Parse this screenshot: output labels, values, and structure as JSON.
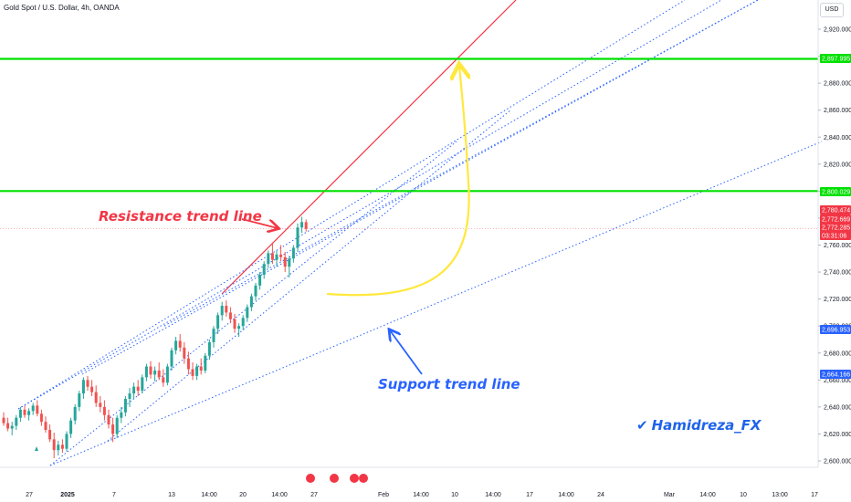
{
  "header": {
    "title": "Gold Spot / U.S. Dollar, 4h, OANDA",
    "currency_button": "USD"
  },
  "annotations": {
    "resistance": "Resistance trend line",
    "support": "Support trend line",
    "author": "Hamidreza_FX"
  },
  "colors": {
    "up": "#26a69a",
    "down": "#ef5350",
    "level": "#00e000",
    "resistance": "#f23645",
    "support": "#2962ff",
    "arrow_yellow": "#ffe83d"
  },
  "chart_data": {
    "type": "candlestick",
    "title": "Gold Spot / U.S. Dollar, 4h, OANDA",
    "y_axis": {
      "ylim": [
        2590,
        2932
      ],
      "ticks": [
        2600,
        2620,
        2640,
        2660,
        2680,
        2700,
        2720,
        2740,
        2760,
        2780,
        2800,
        2820,
        2840,
        2860,
        2880,
        2900,
        2920
      ],
      "tick_labels": [
        "2,600.000",
        "2,620.000",
        "2,640.000",
        "2,660.000",
        "2,680.000",
        "2,700.000",
        "2,720.000",
        "2,740.000",
        "2,760.000",
        "2,780.000",
        "2,800.000",
        "2,820.000",
        "2,840.000",
        "2,860.000",
        "2,880.000",
        "2,900.000",
        "2,920.000"
      ]
    },
    "x_axis": {
      "tick_labels": [
        "27",
        "2025",
        "7",
        "13",
        "14:00",
        "20",
        "14:00",
        "27",
        "Feb",
        "14:00",
        "10",
        "14:00",
        "17",
        "14:00",
        "24",
        "Mar",
        "14:00",
        "10",
        "13:00",
        "17"
      ]
    },
    "price_tags": [
      {
        "label": "2,897.995",
        "value": 2897.995,
        "color": "#00e000"
      },
      {
        "label": "2,800.029",
        "value": 2800.029,
        "color": "#00e000"
      },
      {
        "label": "2,780.474",
        "value": 2780.474,
        "color": "#f23645"
      },
      {
        "label": "2,772.669",
        "value": 2772.669,
        "color": "#f23645"
      },
      {
        "label": "2,772.285",
        "value": 2772.285,
        "color": "#f23645"
      },
      {
        "label": "03:31:06",
        "value": 2766.3,
        "color": "#f23645"
      },
      {
        "label": "2,696.953",
        "value": 2696.953,
        "color": "#2962ff"
      },
      {
        "label": "2,664.166",
        "value": 2664.166,
        "color": "#2962ff"
      }
    ],
    "horizontal_levels": [
      2897.995,
      2800.029
    ],
    "candles": [
      [
        2632,
        2636,
        2626,
        2628
      ],
      [
        2628,
        2632,
        2622,
        2624
      ],
      [
        2624,
        2629,
        2619,
        2626
      ],
      [
        2626,
        2634,
        2623,
        2632
      ],
      [
        2632,
        2640,
        2629,
        2638
      ],
      [
        2638,
        2641,
        2632,
        2634
      ],
      [
        2634,
        2639,
        2630,
        2637
      ],
      [
        2637,
        2643,
        2634,
        2641
      ],
      [
        2641,
        2645,
        2633,
        2635
      ],
      [
        2635,
        2638,
        2626,
        2629
      ],
      [
        2629,
        2633,
        2621,
        2623
      ],
      [
        2623,
        2627,
        2614,
        2616
      ],
      [
        2616,
        2621,
        2602,
        2608
      ],
      [
        2608,
        2615,
        2604,
        2612
      ],
      [
        2612,
        2616,
        2606,
        2609
      ],
      [
        2609,
        2622,
        2607,
        2620
      ],
      [
        2620,
        2632,
        2617,
        2630
      ],
      [
        2630,
        2642,
        2627,
        2640
      ],
      [
        2640,
        2652,
        2637,
        2650
      ],
      [
        2650,
        2662,
        2646,
        2660
      ],
      [
        2660,
        2663,
        2652,
        2655
      ],
      [
        2655,
        2660,
        2648,
        2651
      ],
      [
        2651,
        2656,
        2640,
        2643
      ],
      [
        2643,
        2648,
        2636,
        2640
      ],
      [
        2640,
        2645,
        2630,
        2634
      ],
      [
        2634,
        2638,
        2624,
        2627
      ],
      [
        2627,
        2632,
        2614,
        2620
      ],
      [
        2620,
        2634,
        2617,
        2632
      ],
      [
        2632,
        2640,
        2628,
        2636
      ],
      [
        2636,
        2648,
        2633,
        2646
      ],
      [
        2646,
        2654,
        2640,
        2650
      ],
      [
        2650,
        2658,
        2646,
        2655
      ],
      [
        2655,
        2660,
        2648,
        2652
      ],
      [
        2652,
        2664,
        2650,
        2662
      ],
      [
        2662,
        2672,
        2659,
        2670
      ],
      [
        2670,
        2674,
        2661,
        2664
      ],
      [
        2664,
        2670,
        2659,
        2667
      ],
      [
        2667,
        2673,
        2660,
        2662
      ],
      [
        2662,
        2668,
        2655,
        2658
      ],
      [
        2658,
        2672,
        2656,
        2670
      ],
      [
        2670,
        2684,
        2667,
        2682
      ],
      [
        2682,
        2692,
        2679,
        2689
      ],
      [
        2689,
        2694,
        2681,
        2684
      ],
      [
        2684,
        2688,
        2672,
        2676
      ],
      [
        2676,
        2681,
        2664,
        2668
      ],
      [
        2668,
        2673,
        2660,
        2663
      ],
      [
        2663,
        2672,
        2660,
        2670
      ],
      [
        2670,
        2676,
        2664,
        2667
      ],
      [
        2667,
        2680,
        2665,
        2678
      ],
      [
        2678,
        2690,
        2675,
        2688
      ],
      [
        2688,
        2700,
        2684,
        2698
      ],
      [
        2698,
        2710,
        2694,
        2708
      ],
      [
        2708,
        2718,
        2704,
        2715
      ],
      [
        2715,
        2719,
        2707,
        2710
      ],
      [
        2710,
        2714,
        2702,
        2705
      ],
      [
        2705,
        2709,
        2695,
        2698
      ],
      [
        2698,
        2702,
        2692,
        2700
      ],
      [
        2700,
        2708,
        2697,
        2706
      ],
      [
        2706,
        2716,
        2703,
        2714
      ],
      [
        2714,
        2724,
        2711,
        2722
      ],
      [
        2722,
        2732,
        2719,
        2730
      ],
      [
        2730,
        2740,
        2727,
        2738
      ],
      [
        2738,
        2748,
        2735,
        2746
      ],
      [
        2746,
        2756,
        2743,
        2754
      ],
      [
        2754,
        2762,
        2746,
        2749
      ],
      [
        2749,
        2756,
        2744,
        2753
      ],
      [
        2753,
        2760,
        2748,
        2751
      ],
      [
        2751,
        2755,
        2740,
        2744
      ],
      [
        2744,
        2752,
        2736,
        2750
      ],
      [
        2750,
        2760,
        2747,
        2758
      ],
      [
        2758,
        2776,
        2755,
        2773
      ],
      [
        2773,
        2781,
        2769,
        2777
      ],
      [
        2777,
        2779,
        2770,
        2772
      ]
    ],
    "trendlines": [
      {
        "name": "resistance",
        "style": "solid",
        "color": "#f23645",
        "from": [
          2738,
          2724
        ],
        "to": [
          2931,
          2990
        ]
      },
      {
        "name": "channel-upper-1",
        "style": "dotted",
        "color": "#2962ff",
        "from": [
          0,
          2640
        ],
        "to": [
          4000,
          2900
        ]
      },
      {
        "name": "channel-upper-2",
        "style": "dotted",
        "color": "#2962ff",
        "from": [
          1000,
          2650
        ],
        "to": [
          4200,
          2910
        ]
      },
      {
        "name": "channel-upper-3",
        "style": "dotted",
        "color": "#2962ff",
        "from": [
          1500,
          2660
        ],
        "to": [
          4400,
          2920
        ]
      },
      {
        "name": "channel-upper-4",
        "style": "dotted",
        "color": "#2962ff",
        "from": [
          2000,
          2670
        ],
        "to": [
          4600,
          2930
        ]
      },
      {
        "name": "channel-lower",
        "style": "dotted",
        "color": "#2962ff",
        "from": [
          2000,
          2630
        ],
        "to": [
          4000,
          2780
        ]
      },
      {
        "name": "support",
        "style": "dotted",
        "color": "#2962ff",
        "from": [
          1000,
          2606
        ],
        "to": [
          5000,
          2830
        ]
      }
    ]
  }
}
